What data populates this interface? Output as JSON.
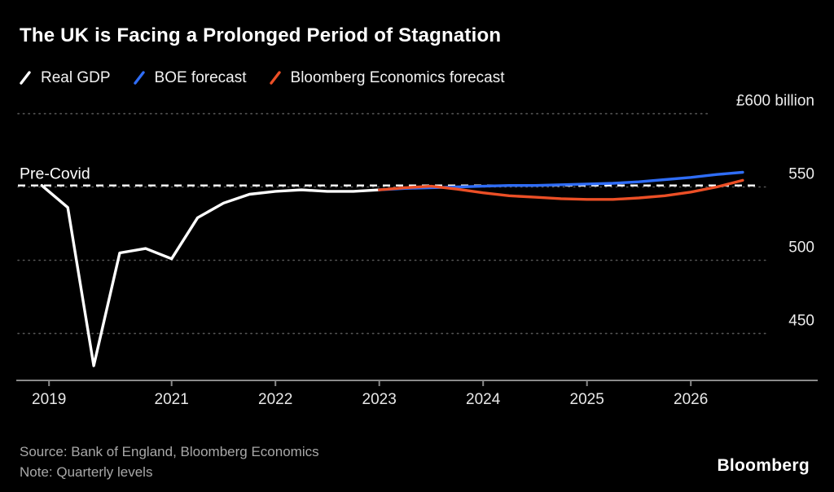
{
  "title": "The UK is Facing a Prolonged Period of Stagnation",
  "legend": [
    {
      "label": "Real GDP",
      "color": "#ffffff"
    },
    {
      "label": "BOE forecast",
      "color": "#2f6df6"
    },
    {
      "label": "Bloomberg Economics forecast",
      "color": "#ec4f26"
    }
  ],
  "footer": {
    "source": "Source: Bank of England, Bloomberg Economics",
    "note": "Note: Quarterly levels",
    "brand": "Bloomberg"
  },
  "chart_data": {
    "type": "line",
    "title": "The UK is Facing a Prolonged Period of Stagnation",
    "ylabel": "£ billion",
    "grid": "horizontal-dotted",
    "legend_position": "top-left",
    "background": "#000000",
    "ylim": [
      418,
      612
    ],
    "xlim": [
      2019.52,
      2026.72
    ],
    "y_ticks": [
      {
        "value": 600,
        "label": "£600 billion"
      },
      {
        "value": 550,
        "label": "550"
      },
      {
        "value": 500,
        "label": "500"
      },
      {
        "value": 450,
        "label": "450"
      }
    ],
    "x_ticks": [
      {
        "x": 2019.82,
        "label": "2019"
      },
      {
        "x": 2021,
        "label": "2021"
      },
      {
        "x": 2022,
        "label": "2022"
      },
      {
        "x": 2023,
        "label": "2023"
      },
      {
        "x": 2024,
        "label": "2024"
      },
      {
        "x": 2025,
        "label": "2025"
      },
      {
        "x": 2026,
        "label": "2026"
      }
    ],
    "reference_line": {
      "label": "Pre-Covid",
      "value": 551,
      "style": "dashed",
      "color": "#ffffff"
    },
    "series": [
      {
        "name": "Real GDP",
        "color": "#ffffff",
        "x_start": 2019.75,
        "x_step": 0.25,
        "values": [
          551,
          536,
          428,
          505,
          508,
          501,
          529,
          539,
          545,
          547,
          548,
          547,
          547,
          548
        ]
      },
      {
        "name": "BOE forecast",
        "color": "#2f6df6",
        "x_start": 2023.0,
        "x_step": 0.25,
        "values": [
          548,
          549,
          549.5,
          550,
          550.5,
          551,
          551,
          551.5,
          552,
          552.5,
          553.5,
          555,
          556.5,
          558.5,
          560
        ]
      },
      {
        "name": "Bloomberg Economics forecast",
        "color": "#ec4f26",
        "x_start": 2023.0,
        "x_step": 0.25,
        "values": [
          548,
          549.5,
          550.5,
          548.5,
          546,
          544,
          543,
          542,
          541.5,
          541.5,
          542.5,
          544,
          546.5,
          550,
          554.5
        ]
      }
    ]
  }
}
